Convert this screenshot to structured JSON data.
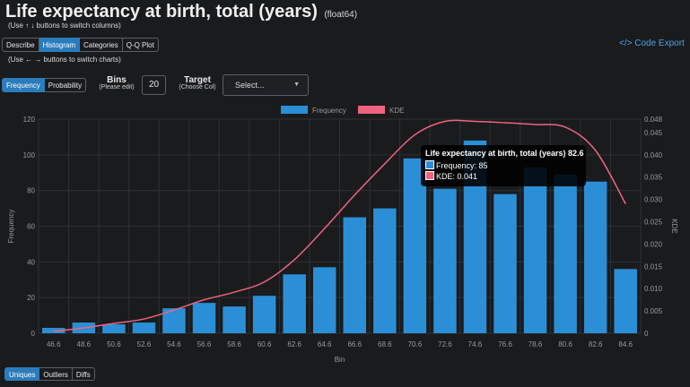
{
  "header": {
    "title": "Life expectancy at birth, total (years)",
    "dtype": "(float64)",
    "hint_columns": "(Use ↑ ↓ buttons to switch columns)",
    "hint_charts": "(Use ← → buttons to switch charts)",
    "code_export": "Code Export"
  },
  "top_tabs": [
    {
      "label": "Describe",
      "active": false
    },
    {
      "label": "Histogram",
      "active": true
    },
    {
      "label": "Categories",
      "active": false
    },
    {
      "label": "Q-Q Plot",
      "active": false
    }
  ],
  "mode_tabs": [
    {
      "label": "Frequency",
      "active": true
    },
    {
      "label": "Probability",
      "active": false
    }
  ],
  "controls": {
    "bins_label": "Bins",
    "bins_sub": "(Please edit)",
    "bins_value": "20",
    "target_label": "Target",
    "target_sub": "(Choose Col)",
    "target_placeholder": "Select..."
  },
  "bottom_tabs": [
    {
      "label": "Uniques",
      "active": true
    },
    {
      "label": "Outliers",
      "active": false
    },
    {
      "label": "Diffs",
      "active": false
    }
  ],
  "colors": {
    "bar": "#2a8fd6",
    "kde": "#f0637f",
    "axis_text": "#9a9a9a",
    "grid": "#2e3033"
  },
  "chart_data": {
    "type": "bar",
    "categories": [
      "46.6",
      "48.6",
      "50.6",
      "52.6",
      "54.6",
      "56.6",
      "58.6",
      "60.6",
      "62.6",
      "64.6",
      "66.6",
      "68.6",
      "70.6",
      "72.6",
      "74.6",
      "76.6",
      "78.6",
      "80.6",
      "82.6",
      "84.6"
    ],
    "series": [
      {
        "name": "Frequency",
        "type": "bar",
        "axis": "left",
        "values": [
          3,
          6,
          5,
          6,
          14,
          17,
          15,
          21,
          33,
          37,
          65,
          70,
          98,
          81,
          108,
          78,
          93,
          89,
          85,
          36
        ]
      },
      {
        "name": "KDE",
        "type": "line",
        "axis": "right",
        "values": [
          0.0004,
          0.0012,
          0.0022,
          0.0032,
          0.0052,
          0.0075,
          0.0092,
          0.0115,
          0.0165,
          0.0235,
          0.031,
          0.038,
          0.0445,
          0.0475,
          0.0475,
          0.0472,
          0.0468,
          0.0462,
          0.041,
          0.029
        ]
      }
    ],
    "xlabel": "Bin",
    "ylabel": "Frequency",
    "y2label": "KDE",
    "ylim": [
      0,
      120
    ],
    "yticks": [
      0,
      20,
      40,
      60,
      80,
      100,
      120
    ],
    "y2lim": [
      0,
      0.048
    ],
    "y2ticks": [
      "0",
      "0.005",
      "0.010",
      "0.015",
      "0.020",
      "0.025",
      "0.030",
      "0.035",
      "0.040",
      "0.045",
      "0.048"
    ],
    "legend": {
      "placement": "top-center",
      "items": [
        "Frequency",
        "KDE"
      ]
    },
    "grid": true,
    "tooltip": {
      "title": "Life expectancy at birth, total (years) 82.6",
      "frequency": "Frequency: 85",
      "kde": "KDE: 0.041"
    }
  }
}
